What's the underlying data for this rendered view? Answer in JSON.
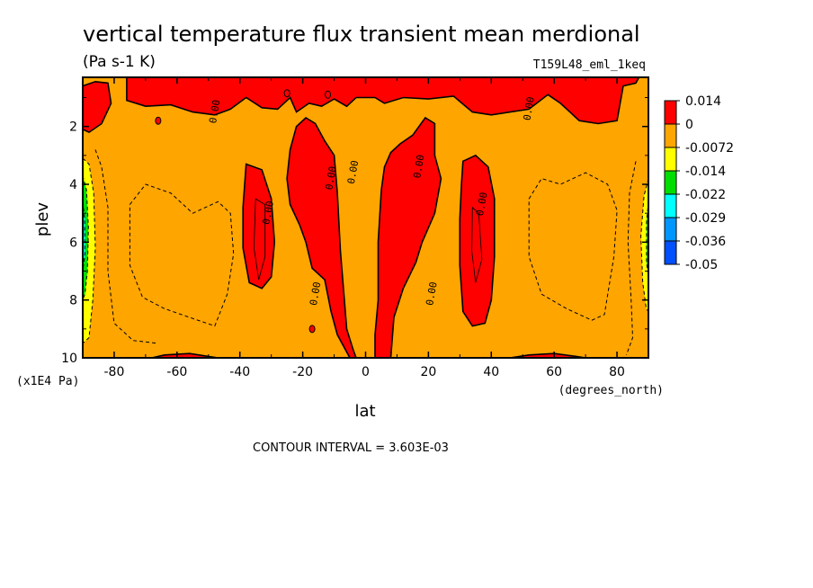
{
  "chart_data": {
    "type": "heatmap",
    "title": "vertical temperature flux transient mean merdional",
    "units": "(Pa s-1 K)",
    "experiment": "T159L48_eml_1keq",
    "xlabel": "lat",
    "ylabel": "plev",
    "x_unit_label": "(degrees_north)",
    "y_unit_label": "(x1E4 Pa)",
    "xlim": [
      -90,
      90
    ],
    "ylim": [
      10,
      0.3
    ],
    "x_ticks": [
      -80,
      -60,
      -40,
      -20,
      0,
      20,
      40,
      60,
      80
    ],
    "x_tick_labels": [
      "-80",
      "-60",
      "-40",
      "-20",
      "0",
      "20",
      "40",
      "60",
      "80"
    ],
    "y_ticks": [
      2,
      4,
      6,
      8,
      10
    ],
    "y_tick_labels": [
      "2",
      "4",
      "6",
      "8",
      "10"
    ],
    "contour_interval_text": "CONTOUR INTERVAL = 3.603E-03",
    "contour_labels": [
      "0.00",
      "0.00",
      "0.00",
      "0.00",
      "0.00",
      "0.00",
      "0.00",
      "0.00",
      "0.00"
    ],
    "legend": {
      "placement": "right",
      "labels": [
        "0.014",
        "0",
        "-0.0072",
        "-0.014",
        "-0.022",
        "-0.029",
        "-0.036",
        "-0.05"
      ],
      "colors": [
        "#ff0000",
        "#ffa500",
        "#ffff00",
        "#00dd00",
        "#00ffff",
        "#0096ff",
        "#0050ff"
      ]
    },
    "levels": {
      "positive": "#ff0000",
      "background": "#ffa500",
      "neg1": "#ffff00",
      "neg2": "#00dd00",
      "neg3": "#00ffff",
      "neg4": "#0096ff"
    },
    "regions": {
      "top_band": [
        [
          -76,
          0.3
        ],
        [
          -76,
          1.1
        ],
        [
          -70,
          1.3
        ],
        [
          -62,
          1.25
        ],
        [
          -55,
          1.5
        ],
        [
          -48,
          1.6
        ],
        [
          -43,
          1.4
        ],
        [
          -38,
          1.0
        ],
        [
          -33,
          1.35
        ],
        [
          -28,
          1.4
        ],
        [
          -24,
          1.0
        ],
        [
          -22,
          1.5
        ],
        [
          -18,
          1.2
        ],
        [
          -14,
          1.3
        ],
        [
          -10,
          1.05
        ],
        [
          -6,
          1.3
        ],
        [
          -3,
          1.0
        ],
        [
          3,
          1.0
        ],
        [
          6,
          1.2
        ],
        [
          12,
          1.0
        ],
        [
          20,
          1.05
        ],
        [
          28,
          0.95
        ],
        [
          34,
          1.5
        ],
        [
          40,
          1.6
        ],
        [
          46,
          1.5
        ],
        [
          52,
          1.4
        ],
        [
          58,
          0.9
        ],
        [
          62,
          1.2
        ],
        [
          68,
          1.8
        ],
        [
          74,
          1.9
        ],
        [
          80,
          1.8
        ],
        [
          82,
          0.6
        ],
        [
          86,
          0.5
        ],
        [
          87,
          0.3
        ]
      ],
      "left_top_blob": [
        [
          -90,
          0.6
        ],
        [
          -86,
          0.45
        ],
        [
          -82,
          0.5
        ],
        [
          -81,
          1.2
        ],
        [
          -84,
          1.9
        ],
        [
          -88,
          2.2
        ],
        [
          -90,
          2.1
        ]
      ],
      "left_cell": [
        [
          -38,
          3.3
        ],
        [
          -33,
          3.5
        ],
        [
          -30,
          4.5
        ],
        [
          -29,
          6.0
        ],
        [
          -30,
          7.2
        ],
        [
          -33,
          7.6
        ],
        [
          -37,
          7.4
        ],
        [
          -39,
          6.2
        ],
        [
          -39,
          4.8
        ]
      ],
      "right_cell": [
        [
          31,
          3.2
        ],
        [
          35,
          3.0
        ],
        [
          39,
          3.4
        ],
        [
          41,
          4.5
        ],
        [
          41,
          6.5
        ],
        [
          40,
          8.0
        ],
        [
          38,
          8.8
        ],
        [
          34,
          8.9
        ],
        [
          31,
          8.4
        ],
        [
          30,
          6.8
        ],
        [
          30,
          5.2
        ],
        [
          30.5,
          4.0
        ]
      ],
      "central_left": [
        [
          -25,
          3.8
        ],
        [
          -24,
          2.8
        ],
        [
          -22,
          2.0
        ],
        [
          -19,
          1.7
        ],
        [
          -16,
          1.9
        ],
        [
          -13,
          2.5
        ],
        [
          -10,
          3.0
        ],
        [
          -9,
          4.3
        ],
        [
          -8,
          6.3
        ],
        [
          -6,
          9.0
        ],
        [
          -4,
          9.7
        ],
        [
          -3,
          10
        ],
        [
          -5,
          10
        ],
        [
          -9,
          9.2
        ],
        [
          -11,
          8.4
        ],
        [
          -13,
          7.3
        ],
        [
          -17,
          6.9
        ],
        [
          -19,
          6.0
        ],
        [
          -21,
          5.4
        ],
        [
          -24,
          4.7
        ]
      ],
      "central_right": [
        [
          3,
          10
        ],
        [
          3,
          9.2
        ],
        [
          4,
          8.0
        ],
        [
          4,
          6.0
        ],
        [
          5,
          4.2
        ],
        [
          6,
          3.4
        ],
        [
          8,
          2.9
        ],
        [
          11,
          2.6
        ],
        [
          15,
          2.3
        ],
        [
          19,
          1.7
        ],
        [
          22,
          1.9
        ],
        [
          22,
          3.0
        ],
        [
          24,
          3.8
        ],
        [
          22,
          5.0
        ],
        [
          18,
          6.0
        ],
        [
          16,
          6.7
        ],
        [
          12,
          7.6
        ],
        [
          9,
          8.6
        ],
        [
          8,
          10
        ]
      ],
      "bottom_left": [
        [
          -68,
          10
        ],
        [
          -64,
          9.9
        ],
        [
          -56,
          9.85
        ],
        [
          -50,
          9.95
        ],
        [
          -47,
          10
        ]
      ],
      "bottom_right": [
        [
          46,
          10
        ],
        [
          52,
          9.9
        ],
        [
          60,
          9.85
        ],
        [
          67,
          9.95
        ],
        [
          70,
          10
        ]
      ],
      "left_neg1": [
        [
          -90,
          3.1
        ],
        [
          -88,
          3.3
        ],
        [
          -86.5,
          4.3
        ],
        [
          -86,
          6.2
        ],
        [
          -86.8,
          8.0
        ],
        [
          -88,
          9.3
        ],
        [
          -90,
          9.5
        ]
      ],
      "left_neg2": [
        [
          -90,
          3.7
        ],
        [
          -88.8,
          4.2
        ],
        [
          -88.2,
          5.5
        ],
        [
          -88.5,
          7.0
        ],
        [
          -89.3,
          7.8
        ],
        [
          -90,
          8.0
        ]
      ],
      "left_neg3": [
        [
          -90,
          4.6
        ],
        [
          -89.4,
          5.2
        ],
        [
          -89.3,
          6.4
        ],
        [
          -90,
          7.0
        ]
      ],
      "left_neg4": [
        [
          -90,
          5.1
        ],
        [
          -89.8,
          5.6
        ],
        [
          -90,
          6.1
        ]
      ],
      "right_neg1": [
        [
          90,
          3.8
        ],
        [
          88.6,
          4.4
        ],
        [
          87.6,
          5.8
        ],
        [
          88.2,
          7.4
        ],
        [
          89.3,
          8.3
        ],
        [
          90,
          8.4
        ]
      ],
      "right_neg2": [
        [
          90,
          4.6
        ],
        [
          89.4,
          5.3
        ],
        [
          89.4,
          6.7
        ],
        [
          90,
          7.2
        ]
      ],
      "left_dash": [
        [
          -75,
          4.7
        ],
        [
          -70,
          4.0
        ],
        [
          -62,
          4.3
        ],
        [
          -55,
          5.0
        ],
        [
          -47,
          4.6
        ],
        [
          -43,
          5.0
        ],
        [
          -42,
          6.4
        ],
        [
          -44,
          7.8
        ],
        [
          -48,
          8.9
        ],
        [
          -56,
          8.6
        ],
        [
          -64,
          8.3
        ],
        [
          -71,
          7.9
        ],
        [
          -75,
          6.8
        ]
      ],
      "right_dash": [
        [
          52,
          4.5
        ],
        [
          56,
          3.8
        ],
        [
          62,
          4.0
        ],
        [
          70,
          3.6
        ],
        [
          77,
          4.0
        ],
        [
          80,
          4.9
        ],
        [
          79,
          6.5
        ],
        [
          76,
          8.5
        ],
        [
          72,
          8.7
        ],
        [
          64,
          8.3
        ],
        [
          56,
          7.8
        ],
        [
          52,
          6.5
        ]
      ],
      "left_outer_dash": [
        [
          -86,
          2.8
        ],
        [
          -84,
          3.4
        ],
        [
          -82,
          4.8
        ],
        [
          -82,
          7.0
        ],
        [
          -80,
          8.8
        ],
        [
          -74,
          9.4
        ],
        [
          -66,
          9.5
        ]
      ],
      "right_outer_dash": [
        [
          86,
          3.2
        ],
        [
          84,
          4.3
        ],
        [
          83.5,
          6.0
        ],
        [
          84.5,
          8.0
        ],
        [
          85,
          9.3
        ],
        [
          83,
          9.9
        ]
      ],
      "left_inner": [
        [
          -35,
          4.5
        ],
        [
          -32,
          4.7
        ],
        [
          -32,
          6.5
        ],
        [
          -34,
          7.3
        ],
        [
          -35.5,
          6.2
        ]
      ],
      "right_inner": [
        [
          34,
          4.8
        ],
        [
          36,
          5.0
        ],
        [
          37,
          6.6
        ],
        [
          35,
          7.4
        ],
        [
          33.8,
          6.3
        ]
      ]
    },
    "contour_label_positions": [
      [
        -47,
        1.5
      ],
      [
        -30,
        5.0
      ],
      [
        -15,
        7.8
      ],
      [
        -10,
        3.8
      ],
      [
        -3,
        3.6
      ],
      [
        18,
        3.4
      ],
      [
        22,
        7.8
      ],
      [
        38,
        4.7
      ],
      [
        53,
        1.4
      ]
    ]
  }
}
